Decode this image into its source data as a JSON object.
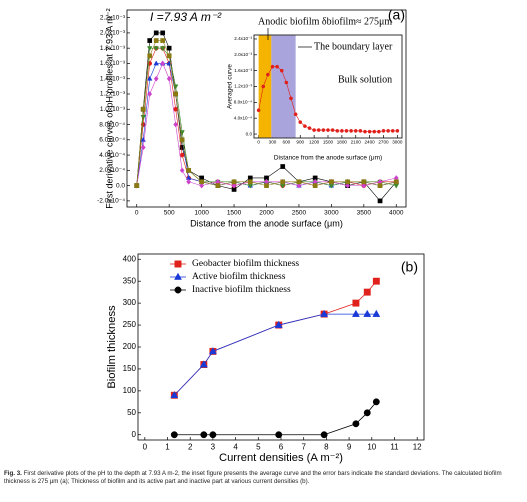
{
  "chart_data": [
    {
      "type": "line",
      "annotation": "I =7.93 A m⁻²",
      "panel": "(a)",
      "ylabel": "First derivative curves of pH profiles at 7.93 A m⁻²",
      "xlabel": "Distance from the anode surface (μm)",
      "xlim": [
        -150,
        4150
      ],
      "xticks": [
        0,
        500,
        1000,
        1500,
        2000,
        2500,
        3000,
        3500,
        4000
      ],
      "ylim": [
        -0.00028,
        0.0023
      ],
      "yticks": [
        {
          "value": 0.0022,
          "label": "2.2x10⁻³"
        },
        {
          "value": 0.002,
          "label": "2.0x10⁻³"
        },
        {
          "value": 0.0018,
          "label": "1.8x10⁻³"
        },
        {
          "value": 0.0016,
          "label": "1.6x10⁻³"
        },
        {
          "value": 0.0014,
          "label": "1.4x10⁻³"
        },
        {
          "value": 0.0012,
          "label": "1.2x10⁻³"
        },
        {
          "value": 0.001,
          "label": "1.0x10⁻³"
        },
        {
          "value": 0.0008,
          "label": "8.0x10⁻⁴"
        },
        {
          "value": 0.0006,
          "label": "6.0x10⁻⁴"
        },
        {
          "value": 0.0004,
          "label": "4.0x10⁻⁴"
        },
        {
          "value": 0.0002,
          "label": "2.0x10⁻⁴"
        },
        {
          "value": 0,
          "label": "0.0"
        },
        {
          "value": -0.0002,
          "label": "-2.0x10⁻⁴"
        }
      ],
      "x": [
        0,
        100,
        200,
        300,
        400,
        500,
        600,
        700,
        800,
        1000,
        1250,
        1500,
        1750,
        2000,
        2250,
        2500,
        2750,
        3000,
        3250,
        3500,
        3750,
        4000
      ],
      "series": [
        {
          "color": "#000000",
          "marker": "square",
          "values": [
            0,
            0.001,
            0.0019,
            0.002,
            0.002,
            0.0018,
            0.0012,
            0.0005,
            0.0002,
            0.0001,
            0,
            -5e-05,
            0.0001,
            0.0001,
            0.00025,
            5e-05,
            0.0001,
            5e-05,
            0,
            5e-05,
            -0.0002,
            5e-05
          ]
        },
        {
          "color": "#e0201a",
          "marker": "circle",
          "values": [
            0,
            0.0008,
            0.0016,
            0.0018,
            0.0018,
            0.0016,
            0.001,
            0.0004,
            0.0001,
            5e-05,
            5e-05,
            0,
            5e-05,
            5e-05,
            0,
            5e-05,
            0,
            5e-05,
            5e-05,
            0,
            5e-05,
            5e-05
          ]
        },
        {
          "color": "#1a3ad8",
          "marker": "triangle",
          "values": [
            0,
            0.0006,
            0.0014,
            0.0016,
            0.0016,
            0.0016,
            0.0012,
            0.0006,
            0.0001,
            5e-05,
            0,
            5e-05,
            0,
            5e-05,
            5e-05,
            0,
            5e-05,
            0,
            5e-05,
            5e-05,
            0,
            5e-05
          ]
        },
        {
          "color": "#3c8a2a",
          "marker": "triangle-down",
          "values": [
            0,
            0.0009,
            0.0018,
            0.0018,
            0.0018,
            0.0017,
            0.0013,
            0.0007,
            0.0002,
            5e-05,
            5e-05,
            5e-05,
            0,
            5e-05,
            0,
            5e-05,
            5e-05,
            0,
            5e-05,
            5e-05,
            5e-05,
            0
          ]
        },
        {
          "color": "#cc44cc",
          "marker": "diamond",
          "values": [
            0,
            0.0005,
            0.0012,
            0.0014,
            0.0016,
            0.0014,
            0.0008,
            0.0002,
            5e-05,
            0,
            5e-05,
            0,
            5e-05,
            5e-05,
            5e-05,
            0,
            5e-05,
            5e-05,
            0,
            0,
            5e-05,
            0.0001
          ]
        },
        {
          "color": "#8a7a10",
          "marker": "square",
          "values": [
            0,
            0.001,
            0.0017,
            0.0019,
            0.0019,
            0.0017,
            0.0012,
            0.0006,
            0.0002,
            5e-05,
            0,
            5e-05,
            5e-05,
            0,
            5e-05,
            5e-05,
            0,
            5e-05,
            5e-05,
            5e-05,
            0,
            5e-05
          ]
        }
      ],
      "inset": {
        "ylabel": "Averaged curve",
        "xlabel": "Distance from the anode surface (μm)",
        "annotations": [
          "Anodic biofilm δbiofilm≈ 275μm",
          "The boundary layer",
          "Bulk solution"
        ],
        "xlim": [
          -100,
          3100
        ],
        "xticks": [
          0,
          300,
          600,
          900,
          1200,
          1500,
          1800,
          2100,
          2400,
          2700,
          3000
        ],
        "ylim": [
          -0.0001,
          0.0025
        ],
        "yticks": [
          {
            "value": 0,
            "label": "0.0"
          },
          {
            "value": 0.0004,
            "label": "4.0x10⁻⁴"
          },
          {
            "value": 0.0008,
            "label": "8.0x10⁻⁴"
          },
          {
            "value": 0.0012,
            "label": "1.2x10⁻³"
          },
          {
            "value": 0.0016,
            "label": "1.6x10⁻³"
          },
          {
            "value": 0.002,
            "label": "2.0x10⁻³"
          },
          {
            "value": 0.0024,
            "label": "2.4x10⁻³"
          }
        ],
        "bands": [
          {
            "from": 0,
            "to": 275,
            "color": "#f5b400"
          },
          {
            "from": 275,
            "to": 800,
            "color": "#aaa4dc"
          }
        ],
        "x": [
          0,
          100,
          200,
          300,
          400,
          500,
          600,
          700,
          800,
          900,
          1000,
          1100,
          1200,
          1300,
          1400,
          1500,
          1600,
          1700,
          1800,
          1900,
          2000,
          2100,
          2200,
          2300,
          2400,
          2500,
          2600,
          2700,
          2800,
          2900,
          3000
        ],
        "series": [
          {
            "color": "#e0201a",
            "marker": "circle",
            "values": [
              0.0006,
              0.0012,
              0.0015,
              0.0017,
              0.0017,
              0.0016,
              0.0013,
              0.0009,
              0.0005,
              0.0003,
              0.0002,
              0.00015,
              0.0001,
              0.0001,
              0.0001,
              0.0001,
              0.0001,
              8e-05,
              8e-05,
              8e-05,
              8e-05,
              8e-05,
              8e-05,
              6e-05,
              6e-05,
              6e-05,
              6e-05,
              8e-05,
              8e-05,
              8e-05,
              8e-05
            ]
          }
        ]
      }
    },
    {
      "type": "line",
      "panel": "(b)",
      "ylabel": "Biofilm thickness",
      "xlabel": "Current densities (A m⁻²)",
      "xlim": [
        -0.3,
        12.3
      ],
      "xticks": [
        0,
        1,
        2,
        3,
        4,
        5,
        6,
        7,
        8,
        9,
        10,
        11,
        12
      ],
      "ylim": [
        -12,
        412
      ],
      "yticks": [
        0,
        50,
        100,
        150,
        200,
        250,
        300,
        350,
        400
      ],
      "legend": "upper left",
      "series": [
        {
          "name": "Geobacter biofilm thickness",
          "color": "#e0201a",
          "marker": "square",
          "x": [
            1.3,
            2.6,
            3.0,
            5.9,
            7.9,
            9.3,
            9.8,
            10.2
          ],
          "values": [
            90,
            160,
            190,
            250,
            275,
            300,
            325,
            350
          ]
        },
        {
          "name": "Active biofilm thickness",
          "color": "#1a3ad8",
          "marker": "triangle",
          "x": [
            1.3,
            2.6,
            3.0,
            5.9,
            7.9,
            9.3,
            9.8,
            10.2
          ],
          "values": [
            90,
            160,
            190,
            250,
            275,
            275,
            275,
            275
          ]
        },
        {
          "name": "Inactive biofilm thickness",
          "color": "#000000",
          "marker": "circle",
          "x": [
            1.3,
            2.6,
            3.0,
            5.9,
            7.9,
            9.3,
            9.8,
            10.2
          ],
          "values": [
            0,
            0,
            0,
            0,
            0,
            25,
            50,
            75
          ]
        }
      ]
    }
  ],
  "caption": {
    "label": "Fig. 3.",
    "text": "First derivative plots of the pH to the depth at 7.93 A m-2, the inset figure presents the average curve and the error bars indicate the standard deviations. The calculated biofilm thickness is 275 μm (a); Thickness of biofilm and its active part and inactive part at various current densities (b)."
  }
}
